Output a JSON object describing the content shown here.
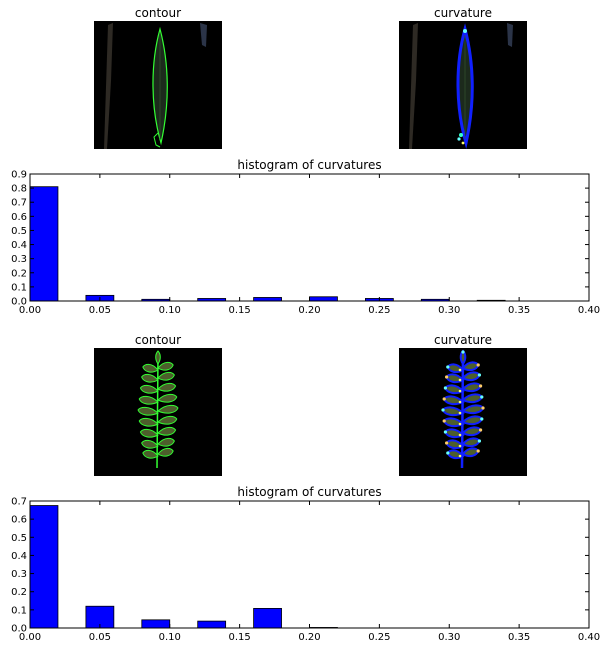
{
  "figures": [
    {
      "left_title": "contour",
      "right_title": "curvature",
      "hist_title": "histogram of curvatures"
    },
    {
      "left_title": "contour",
      "right_title": "curvature",
      "hist_title": "histogram of curvatures"
    }
  ],
  "chart_data": [
    {
      "type": "bar",
      "title": "histogram of curvatures",
      "xlabel": "",
      "ylabel": "",
      "xlim": [
        0,
        0.4
      ],
      "ylim": [
        0,
        0.9
      ],
      "bar_width": 0.02,
      "bar_color": "#0000ff",
      "x": [
        0.0,
        0.04,
        0.08,
        0.12,
        0.16,
        0.2,
        0.24,
        0.28,
        0.32
      ],
      "values": [
        0.81,
        0.04,
        0.012,
        0.018,
        0.025,
        0.03,
        0.018,
        0.012,
        0.005
      ],
      "xticks": [
        "0.00",
        "0.05",
        "0.10",
        "0.15",
        "0.20",
        "0.25",
        "0.30",
        "0.35",
        "0.40"
      ],
      "yticks": [
        "0.0",
        "0.1",
        "0.2",
        "0.3",
        "0.4",
        "0.5",
        "0.6",
        "0.7",
        "0.8",
        "0.9"
      ],
      "grid": false
    },
    {
      "type": "bar",
      "title": "histogram of curvatures",
      "xlabel": "",
      "ylabel": "",
      "xlim": [
        0,
        0.4
      ],
      "ylim": [
        0,
        0.7
      ],
      "bar_width": 0.02,
      "bar_color": "#0000ff",
      "x": [
        0.0,
        0.04,
        0.08,
        0.12,
        0.16,
        0.2
      ],
      "values": [
        0.675,
        0.12,
        0.045,
        0.038,
        0.108,
        0.003
      ],
      "xticks": [
        "0.00",
        "0.05",
        "0.10",
        "0.15",
        "0.20",
        "0.25",
        "0.30",
        "0.35",
        "0.40"
      ],
      "yticks": [
        "0.0",
        "0.1",
        "0.2",
        "0.3",
        "0.4",
        "0.5",
        "0.6",
        "0.7"
      ],
      "grid": false
    }
  ]
}
